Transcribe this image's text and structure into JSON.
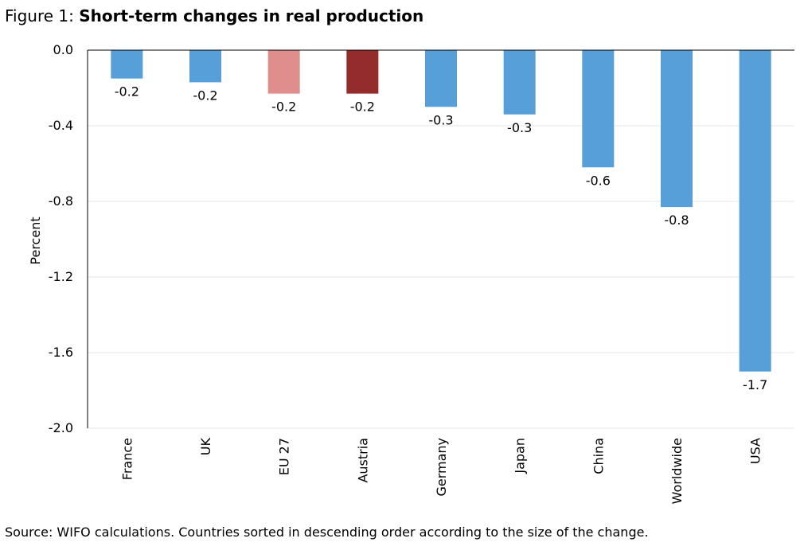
{
  "figure": {
    "prefix": "Figure 1: ",
    "title": "Short-term changes in real production"
  },
  "source": "Source: WIFO calculations. Countries sorted in descending order according to the size of the change.",
  "chart_data": {
    "type": "bar",
    "categories": [
      "France",
      "UK",
      "EU 27",
      "Austria",
      "Germany",
      "Japan",
      "China",
      "Worldwide",
      "USA"
    ],
    "values": [
      -0.15,
      -0.17,
      -0.23,
      -0.23,
      -0.3,
      -0.34,
      -0.62,
      -0.83,
      -1.7
    ],
    "data_labels": [
      "-0.2",
      "-0.2",
      "-0.2",
      "-0.2",
      "-0.3",
      "-0.3",
      "-0.6",
      "-0.8",
      "-1.7"
    ],
    "colors": [
      "#569fd8",
      "#569fd8",
      "#e08d8d",
      "#952c2c",
      "#569fd8",
      "#569fd8",
      "#569fd8",
      "#569fd8",
      "#569fd8"
    ],
    "ylabel": "Percent",
    "ylim": [
      -2.0,
      0.0
    ],
    "yticks": [
      "0.0",
      "-0.4",
      "-0.8",
      "-1.2",
      "-1.6",
      "-2.0"
    ],
    "grid": true
  }
}
